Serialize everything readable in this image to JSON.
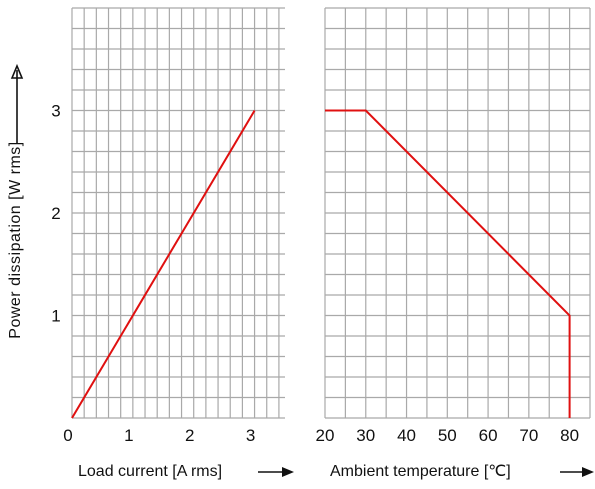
{
  "chart_data": [
    {
      "type": "line",
      "xlabel": "Load current [A rms]",
      "ylabel": "Power dissipation [W rms]",
      "x_ticks": [
        "0",
        "1",
        "2",
        "3"
      ],
      "y_ticks": [
        "1",
        "2",
        "3"
      ],
      "xlim": [
        0,
        3.5
      ],
      "ylim": [
        0,
        4
      ],
      "grid": true,
      "line_color": "#e01010",
      "series": [
        {
          "x": [
            0,
            3
          ],
          "y": [
            0,
            3
          ]
        }
      ]
    },
    {
      "type": "line",
      "xlabel": "Ambient temperature [℃]",
      "ylabel": "Power dissipation [W rms]",
      "x_ticks": [
        "20",
        "30",
        "40",
        "50",
        "60",
        "70",
        "80"
      ],
      "xlim": [
        20,
        85
      ],
      "ylim": [
        0,
        4
      ],
      "grid": true,
      "line_color": "#e01010",
      "series": [
        {
          "x": [
            20,
            30,
            80,
            80
          ],
          "y": [
            3,
            3,
            1,
            0
          ]
        }
      ]
    }
  ]
}
